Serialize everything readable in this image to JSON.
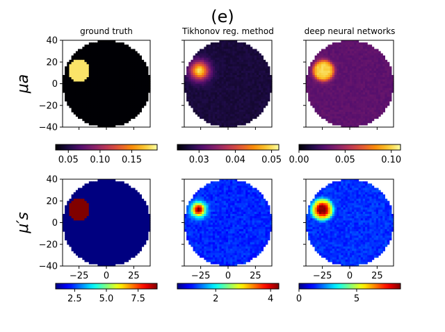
{
  "figure": {
    "title": "(e)",
    "column_titles": [
      "ground truth",
      "Tikhonov reg. method",
      "deep neural networks"
    ],
    "row_labels": [
      "μa",
      "μ′s"
    ]
  },
  "chart_data": {
    "type": "heatmap",
    "grid": false,
    "xlim": [
      -40,
      40
    ],
    "ylim": [
      -40,
      40
    ],
    "xticks": [
      -25,
      0,
      25
    ],
    "yticks": [
      40,
      20,
      0,
      -20,
      -40
    ],
    "domain_shape": "disk",
    "domain_radius": 40,
    "panels": [
      {
        "row": "μa",
        "column": "ground truth",
        "colormap": "inferno",
        "colorbar": {
          "min": 0.03,
          "max": 0.19,
          "ticks": [
            0.05,
            0.1,
            0.15
          ],
          "tick_labels": [
            "0.05",
            "0.10",
            "0.15"
          ]
        },
        "background": 0.03,
        "inclusions": [
          {
            "x": -25,
            "y": 12,
            "radius": 10,
            "value": 0.18,
            "profile": "flat"
          }
        ]
      },
      {
        "row": "μa",
        "column": "Tikhonov reg. method",
        "colormap": "inferno",
        "colorbar": {
          "min": 0.024,
          "max": 0.052,
          "ticks": [
            0.03,
            0.04,
            0.05
          ],
          "tick_labels": [
            "0.03",
            "0.04",
            "0.05"
          ]
        },
        "background": 0.027,
        "inclusions": [
          {
            "x": -26,
            "y": 12,
            "radius": 11,
            "value": 0.05,
            "profile": "smooth"
          }
        ]
      },
      {
        "row": "μa",
        "column": "deep neural networks",
        "colormap": "inferno",
        "colorbar": {
          "min": 0.0,
          "max": 0.11,
          "ticks": [
            0.0,
            0.05,
            0.1
          ],
          "tick_labels": [
            "0.00",
            "0.05",
            "0.10"
          ]
        },
        "background": 0.03,
        "inclusions": [
          {
            "x": -24,
            "y": 12,
            "radius": 10,
            "value": 0.1,
            "profile": "soft"
          }
        ]
      },
      {
        "row": "μ′s",
        "column": "ground truth",
        "colormap": "jet",
        "colorbar": {
          "min": 1.0,
          "max": 9.0,
          "ticks": [
            2.5,
            5.0,
            7.5
          ],
          "tick_labels": [
            "2.5",
            "5.0",
            "7.5"
          ]
        },
        "background": 1.0,
        "inclusions": [
          {
            "x": -25,
            "y": 12,
            "radius": 10,
            "value": 9.0,
            "profile": "flat"
          }
        ]
      },
      {
        "row": "μ′s",
        "column": "Tikhonov reg. method",
        "colormap": "jet",
        "colorbar": {
          "min": 0.6,
          "max": 4.3,
          "ticks": [
            2,
            4
          ],
          "tick_labels": [
            "2",
            "4"
          ]
        },
        "background": 1.2,
        "inclusions": [
          {
            "x": -27,
            "y": 12,
            "radius": 8,
            "value": 4.3,
            "profile": "smooth"
          }
        ]
      },
      {
        "row": "μ′s",
        "column": "deep neural networks",
        "colormap": "jet",
        "colorbar": {
          "min": 0.0,
          "max": 8.8,
          "ticks": [
            0,
            5
          ],
          "tick_labels": [
            "0",
            "5"
          ]
        },
        "background": 1.5,
        "inclusions": [
          {
            "x": -25,
            "y": 12,
            "radius": 10,
            "value": 8.8,
            "profile": "ring"
          }
        ]
      }
    ]
  }
}
